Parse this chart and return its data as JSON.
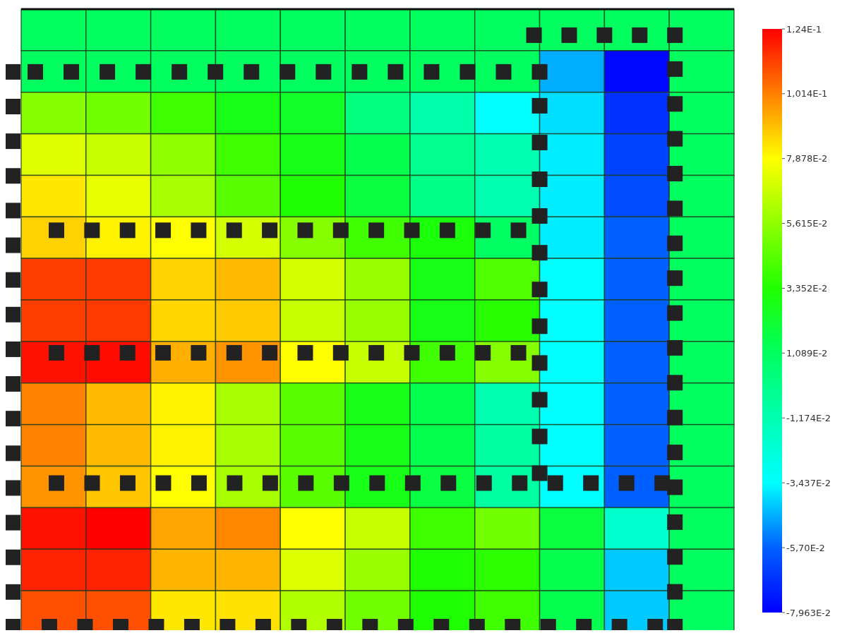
{
  "chart_data": {
    "type": "heatmap",
    "categories": [
      null,
      null,
      null,
      null,
      null,
      null,
      null,
      null,
      null,
      null,
      null
    ],
    "y_categories": [
      null,
      null,
      null,
      null,
      null,
      null,
      null,
      null,
      null,
      null,
      null,
      null,
      null,
      null,
      null
    ],
    "cells": [
      [
        0.011,
        0.011,
        0.011,
        0.011,
        0.011,
        0.011,
        0.011,
        0.011,
        0.011,
        0.011,
        0.011
      ],
      [
        0.011,
        0.011,
        0.011,
        0.011,
        0.011,
        0.011,
        0.011,
        0.011,
        -0.046,
        -0.078,
        0.011
      ],
      [
        0.054,
        0.05,
        0.04,
        0.028,
        0.024,
        0.002,
        -0.01,
        -0.034,
        -0.039,
        -0.068,
        0.011
      ],
      [
        0.072,
        0.067,
        0.056,
        0.04,
        0.028,
        0.015,
        -0.002,
        -0.012,
        -0.037,
        -0.064,
        0.011
      ],
      [
        0.083,
        0.074,
        0.061,
        0.045,
        0.033,
        0.019,
        0.0,
        -0.012,
        -0.037,
        -0.062,
        0.011
      ],
      [
        0.087,
        0.081,
        0.079,
        0.07,
        0.054,
        0.04,
        0.031,
        0.01,
        -0.037,
        -0.057,
        0.011
      ],
      [
        0.113,
        0.114,
        0.087,
        0.091,
        0.07,
        0.058,
        0.028,
        0.043,
        -0.034,
        -0.057,
        0.011
      ],
      [
        0.113,
        0.114,
        0.086,
        0.088,
        0.067,
        0.058,
        0.028,
        0.035,
        -0.034,
        -0.057,
        0.011
      ],
      [
        0.121,
        0.122,
        0.093,
        0.098,
        0.079,
        0.067,
        0.04,
        0.054,
        -0.034,
        -0.057,
        0.011
      ],
      [
        0.101,
        0.091,
        0.081,
        0.061,
        0.045,
        0.028,
        0.015,
        -0.012,
        -0.034,
        -0.057,
        0.011
      ],
      [
        0.101,
        0.091,
        0.081,
        0.061,
        0.045,
        0.028,
        0.015,
        -0.008,
        -0.034,
        -0.057,
        0.011
      ],
      [
        0.098,
        0.089,
        0.079,
        0.061,
        0.045,
        0.028,
        0.018,
        -0.008,
        -0.034,
        -0.057,
        0.011
      ],
      [
        0.121,
        0.124,
        0.095,
        0.1,
        0.079,
        0.067,
        0.04,
        0.05,
        0.019,
        -0.02,
        0.011
      ],
      [
        0.118,
        0.118,
        0.092,
        0.092,
        0.072,
        0.058,
        0.033,
        0.036,
        0.015,
        -0.042,
        0.011
      ],
      [
        0.11,
        0.11,
        0.083,
        0.084,
        0.063,
        0.05,
        0.033,
        0.04,
        0.015,
        -0.042,
        0.011
      ]
    ],
    "clim": [
      -0.07963,
      0.124
    ],
    "cticks": [
      {
        "value": -0.07963,
        "label": "-7,963E-2"
      },
      {
        "value": -0.057,
        "label": "-5,70E-2"
      },
      {
        "value": -0.03437,
        "label": "-3,437E-2"
      },
      {
        "value": -0.01174,
        "label": "-1,174E-2"
      },
      {
        "value": 0.01089,
        "label": "1,089E-2"
      },
      {
        "value": 0.03352,
        "label": "3,352E-2"
      },
      {
        "value": 0.05615,
        "label": "5,615E-2"
      },
      {
        "value": 0.07878,
        "label": "7,878E-2"
      },
      {
        "value": 0.1014,
        "label": "1,014E-1"
      },
      {
        "value": 0.124,
        "label": "1,24E-1"
      }
    ]
  }
}
